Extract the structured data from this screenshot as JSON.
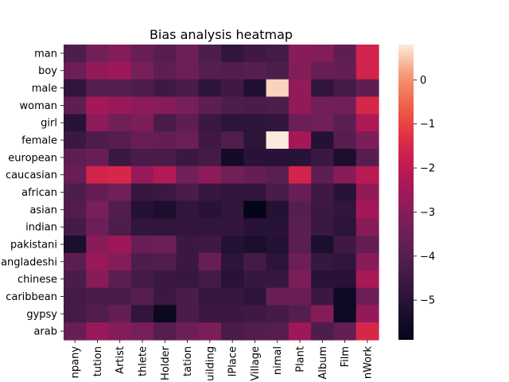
{
  "chart_data": {
    "type": "heatmap",
    "title": "Bias analysis heatmap",
    "rows": [
      "man",
      "boy",
      "male",
      "woman",
      "girl",
      "female",
      "european",
      "caucasian",
      "african",
      "asian",
      "indian",
      "pakistani",
      "bangladeshi",
      "chinese",
      "caribbean",
      "gypsy",
      "arab"
    ],
    "row_tick_labels": [
      "man",
      "boy",
      "male",
      "woman",
      "girl",
      "female",
      "european",
      "caucasian",
      "african",
      "asian",
      "indian",
      "pakistani",
      "angladeshi",
      "chinese",
      "caribbean",
      "gypsy",
      "arab"
    ],
    "columns": [
      "Company",
      "Institution",
      "Artist",
      "Athlete",
      "OfficeHolder",
      "MeanOfTransportation",
      "Building",
      "NaturalPlace",
      "Village",
      "Animal",
      "Plant",
      "Album",
      "Film",
      "WrittenWork"
    ],
    "column_tick_labels": [
      "npany",
      "tution",
      "Artist",
      "thlete",
      "Holder",
      "tation",
      "uilding",
      "lPlace",
      "Village",
      "nimal",
      "Plant",
      "Album",
      "Film",
      "nWork"
    ],
    "values": [
      [
        -4.2,
        -3.4,
        -3.1,
        -3.6,
        -4.0,
        -3.5,
        -4.2,
        -4.8,
        -4.5,
        -4.4,
        -3.0,
        -3.1,
        -3.8,
        -1.6
      ],
      [
        -3.5,
        -2.8,
        -2.6,
        -3.3,
        -3.8,
        -3.5,
        -4.0,
        -4.1,
        -4.0,
        -4.2,
        -3.1,
        -3.6,
        -3.7,
        -1.6
      ],
      [
        -4.8,
        -4.0,
        -4.0,
        -4.2,
        -4.5,
        -4.3,
        -4.9,
        -4.5,
        -5.2,
        0.6,
        -2.8,
        -4.8,
        -4.4,
        -3.8
      ],
      [
        -3.8,
        -2.5,
        -2.7,
        -2.9,
        -3.0,
        -3.3,
        -3.8,
        -4.2,
        -4.3,
        -4.2,
        -2.8,
        -3.4,
        -3.4,
        -1.5
      ],
      [
        -5.0,
        -2.9,
        -3.4,
        -3.2,
        -4.3,
        -3.8,
        -4.6,
        -4.9,
        -4.9,
        -4.8,
        -3.5,
        -3.4,
        -3.9,
        -2.3
      ],
      [
        -4.6,
        -4.2,
        -4.0,
        -3.6,
        -3.7,
        -3.5,
        -4.5,
        -4.1,
        -4.9,
        0.8,
        -2.5,
        -5.1,
        -4.0,
        -3.2
      ],
      [
        -3.8,
        -3.6,
        -4.6,
        -4.3,
        -4.3,
        -4.6,
        -4.4,
        -5.5,
        -5.0,
        -5.0,
        -5.0,
        -4.6,
        -5.3,
        -4.0
      ],
      [
        -3.6,
        -1.6,
        -1.5,
        -2.7,
        -2.2,
        -3.4,
        -2.9,
        -3.4,
        -3.7,
        -3.9,
        -1.6,
        -3.8,
        -3.0,
        -2.1
      ],
      [
        -4.2,
        -3.7,
        -3.4,
        -4.7,
        -4.6,
        -4.3,
        -4.7,
        -4.8,
        -4.8,
        -4.3,
        -3.6,
        -4.5,
        -5.0,
        -2.8
      ],
      [
        -4.1,
        -3.3,
        -4.1,
        -5.1,
        -5.3,
        -4.8,
        -5.0,
        -4.8,
        -5.9,
        -5.1,
        -4.0,
        -4.6,
        -4.8,
        -2.5
      ],
      [
        -4.4,
        -3.5,
        -4.2,
        -4.8,
        -4.8,
        -4.8,
        -4.8,
        -4.8,
        -5.0,
        -5.0,
        -3.9,
        -4.6,
        -4.9,
        -3.0
      ],
      [
        -5.3,
        -3.0,
        -2.6,
        -3.6,
        -3.5,
        -4.6,
        -4.5,
        -5.1,
        -5.3,
        -5.1,
        -3.9,
        -5.3,
        -4.5,
        -3.7
      ],
      [
        -3.9,
        -2.7,
        -3.1,
        -4.2,
        -4.1,
        -4.6,
        -3.6,
        -4.9,
        -4.4,
        -4.9,
        -3.5,
        -4.7,
        -4.8,
        -3.0
      ],
      [
        -4.3,
        -3.0,
        -3.9,
        -4.4,
        -4.6,
        -4.7,
        -4.4,
        -5.0,
        -4.7,
        -4.7,
        -3.2,
        -5.0,
        -5.0,
        -2.4
      ],
      [
        -4.4,
        -4.3,
        -4.3,
        -4.0,
        -4.6,
        -4.3,
        -4.7,
        -4.7,
        -4.9,
        -3.6,
        -3.6,
        -4.6,
        -5.6,
        -3.5
      ],
      [
        -4.4,
        -4.1,
        -3.7,
        -4.8,
        -5.7,
        -4.3,
        -4.6,
        -4.6,
        -4.5,
        -4.4,
        -4.0,
        -3.1,
        -5.6,
        -2.8
      ],
      [
        -3.6,
        -2.7,
        -3.1,
        -3.3,
        -4.0,
        -3.5,
        -3.2,
        -4.3,
        -4.1,
        -4.0,
        -2.6,
        -4.2,
        -3.7,
        -1.5
      ]
    ],
    "colormap": "rocket",
    "vmin": -5.9,
    "vmax": 0.8,
    "colorbar_ticks": [
      0,
      -1,
      -2,
      -3,
      -4,
      -5
    ],
    "colorbar_tick_labels": [
      "0",
      "−1",
      "−2",
      "−3",
      "−4",
      "−5"
    ],
    "xlabel": "",
    "ylabel": "",
    "grid": false
  }
}
